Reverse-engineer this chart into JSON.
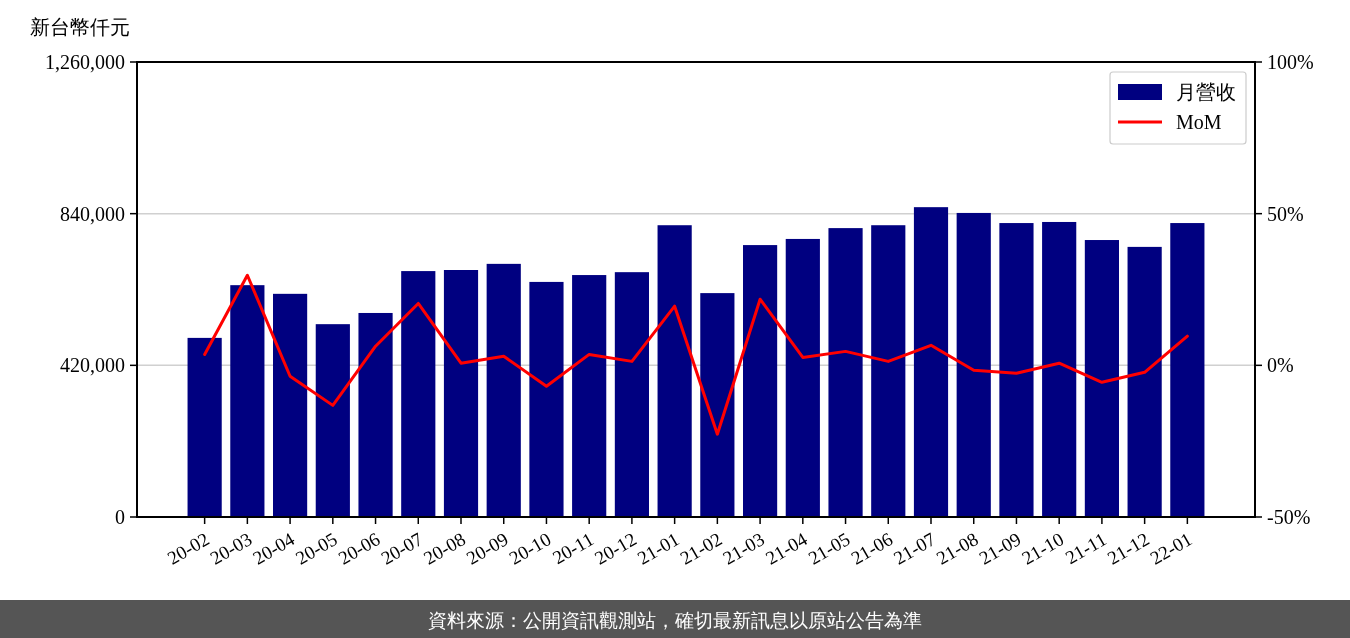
{
  "chart_data": {
    "type": "bar",
    "ylabel": "新台幣仟元",
    "categories": [
      "20-02",
      "20-03",
      "20-04",
      "20-05",
      "20-06",
      "20-07",
      "20-08",
      "20-09",
      "20-10",
      "20-11",
      "20-12",
      "21-01",
      "21-02",
      "21-03",
      "21-04",
      "21-05",
      "21-06",
      "21-07",
      "21-08",
      "21-09",
      "21-10",
      "21-11",
      "21-12",
      "22-01"
    ],
    "series": [
      {
        "name": "月營收",
        "color": "#000080",
        "values": [
          496000,
          642000,
          618000,
          534000,
          565000,
          681000,
          684000,
          701000,
          651000,
          670000,
          678000,
          808000,
          620000,
          753000,
          770000,
          800000,
          808000,
          858000,
          842000,
          814000,
          817000,
          767000,
          748000,
          814000
        ]
      },
      {
        "name": "MoM",
        "type": "line",
        "axis": "y2",
        "color": "#ff0000",
        "values": [
          3.6,
          29.7,
          -3.6,
          -13.2,
          6.3,
          20.4,
          0.7,
          3.0,
          -6.9,
          3.6,
          1.3,
          19.5,
          -22.7,
          21.8,
          2.6,
          4.6,
          1.3,
          6.6,
          -1.6,
          -2.6,
          0.7,
          -5.6,
          -2.3,
          9.6
        ]
      }
    ],
    "ylim": [
      0,
      1260000
    ],
    "yticks": [
      {
        "value": 0,
        "label": "0"
      },
      {
        "value": 420000,
        "label": "420,000"
      },
      {
        "value": 840000,
        "label": "840,000"
      },
      {
        "value": 1260000,
        "label": "1,260,000"
      }
    ],
    "y2lim": [
      -50,
      100
    ],
    "y2ticks": [
      {
        "value": -50,
        "label": "-50%"
      },
      {
        "value": 0,
        "label": "0%"
      },
      {
        "value": 50,
        "label": "50%"
      },
      {
        "value": 100,
        "label": "100%"
      }
    ],
    "grid": "y",
    "legend": "top right",
    "annotations": [
      "資料來源：公開資訊觀測站，確切最新訊息以原站公告為準"
    ]
  }
}
